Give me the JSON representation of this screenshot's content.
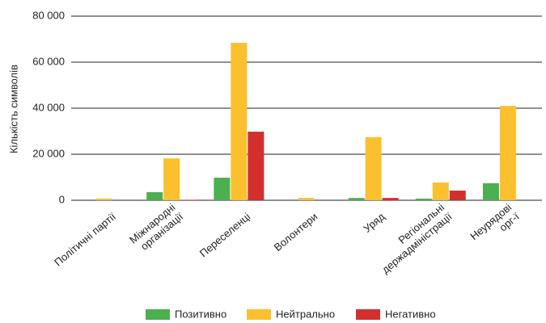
{
  "chart_data": {
    "type": "bar",
    "ylabel": "Кількість символів",
    "categories": [
      [
        "Політичні партії"
      ],
      [
        "Міжнародні",
        "організації"
      ],
      [
        "Переселенці"
      ],
      [
        "Волонтери"
      ],
      [
        "Уряд"
      ],
      [
        "Регіональні",
        "держадміністрації"
      ],
      [
        "Неурядові",
        "орг-ї"
      ]
    ],
    "series": [
      {
        "name": "Позитивно",
        "color": "#4caf50",
        "values": [
          0,
          3500,
          9800,
          0,
          1000,
          700,
          7400
        ]
      },
      {
        "name": "Нейтрально",
        "color": "#fbc02d",
        "values": [
          700,
          18200,
          68400,
          1000,
          27400,
          7700,
          41000
        ]
      },
      {
        "name": "Негативно",
        "color": "#d32f2f",
        "values": [
          0,
          200,
          29800,
          0,
          1000,
          4200,
          0
        ]
      }
    ],
    "ylim": [
      0,
      80000
    ],
    "yticks": [
      0,
      {
        "value": 20000,
        "label": "20 000"
      },
      {
        "value": 40000,
        "label": "40 000"
      },
      {
        "value": 60000,
        "label": "60 000"
      },
      {
        "value": 80000,
        "label": "80 000"
      }
    ],
    "grid": true
  }
}
